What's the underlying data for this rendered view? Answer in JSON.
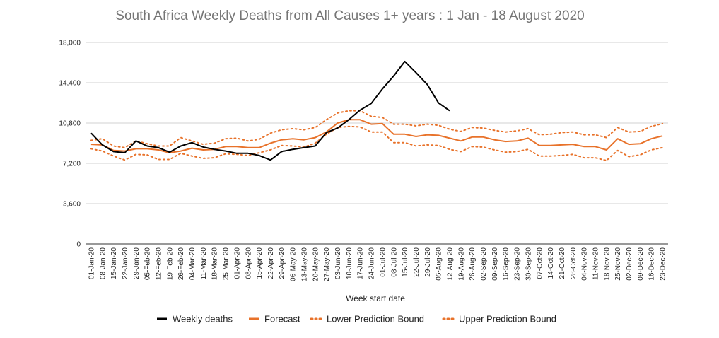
{
  "chart_data": {
    "type": "line",
    "title": "South Africa Weekly Deaths from All Causes 1+ years : 1 Jan  - 18 August 2020",
    "xlabel": "Week start date",
    "ylabel": "",
    "ylim": [
      0,
      18000
    ],
    "yticks": [
      "0",
      "3,600",
      "7,200",
      "10,800",
      "14,400",
      "18,000"
    ],
    "ytick_values": [
      0,
      3600,
      7200,
      10800,
      14400,
      18000
    ],
    "grid": "horizontal",
    "legend_position": "bottom",
    "categories": [
      "01-Jan-20",
      "08-Jan-20",
      "15-Jan-20",
      "22-Jan-20",
      "29-Jan-20",
      "05-Feb-20",
      "12-Feb-20",
      "19-Feb-20",
      "26-Feb-20",
      "04-Mar-20",
      "11-Mar-20",
      "18-Mar-20",
      "25-Mar-20",
      "01-Apr-20",
      "08-Apr-20",
      "15-Apr-20",
      "22-Apr-20",
      "29-Apr-20",
      "06-May-20",
      "13-May-20",
      "20-May-20",
      "27-May-20",
      "03-Jun-20",
      "10-Jun-20",
      "17-Jun-20",
      "24-Jun-20",
      "01-Jul-20",
      "08-Jul-20",
      "15-Jul-20",
      "22-Jul-20",
      "29-Jul-20",
      "05-Aug-20",
      "12-Aug-20",
      "19-Aug-20",
      "26-Aug-20",
      "02-Sep-20",
      "09-Sep-20",
      "16-Sep-20",
      "23-Sep-20",
      "30-Sep-20",
      "07-Oct-20",
      "14-Oct-20",
      "21-Oct-20",
      "28-Oct-20",
      "04-Nov-20",
      "11-Nov-20",
      "18-Nov-20",
      "25-Nov-20",
      "02-Dec-20",
      "09-Dec-20",
      "16-Dec-20",
      "23-Dec-20"
    ],
    "series": [
      {
        "name": "Weekly deaths",
        "color": "#000000",
        "style": "solid",
        "values": [
          9900,
          8850,
          8250,
          8150,
          9200,
          8750,
          8600,
          8200,
          8750,
          9050,
          8650,
          8450,
          8300,
          8100,
          8100,
          7900,
          7500,
          8250,
          8450,
          8600,
          8750,
          9950,
          10350,
          11100,
          11950,
          12550,
          13850,
          15000,
          16300,
          15300,
          14250,
          12600,
          11900,
          null,
          null,
          null,
          null,
          null,
          null,
          null,
          null,
          null,
          null,
          null,
          null,
          null,
          null,
          null,
          null,
          null,
          null,
          null
        ]
      },
      {
        "name": "Forecast",
        "color": "#e8722a",
        "style": "solid",
        "values": [
          8900,
          8850,
          8350,
          8300,
          8500,
          8500,
          8400,
          8150,
          8300,
          8550,
          8400,
          8450,
          8700,
          8700,
          8600,
          8600,
          9000,
          9300,
          9400,
          9300,
          9500,
          10000,
          10800,
          11100,
          11100,
          10700,
          10750,
          9800,
          9800,
          9600,
          9750,
          9700,
          9450,
          9200,
          9550,
          9550,
          9300,
          9150,
          9200,
          9450,
          8800,
          8800,
          8850,
          8900,
          8700,
          8700,
          8400,
          9400,
          8900,
          8950,
          9400,
          9650
        ]
      },
      {
        "name": "Lower Prediction Bound",
        "color": "#e8722a",
        "style": "dotted",
        "values": [
          8500,
          8300,
          7850,
          7500,
          8000,
          7950,
          7550,
          7550,
          8100,
          7850,
          7650,
          7700,
          8050,
          8000,
          7900,
          8150,
          8400,
          8800,
          8750,
          8650,
          9000,
          9800,
          10400,
          10500,
          10450,
          10000,
          10000,
          9050,
          9050,
          8750,
          8850,
          8800,
          8450,
          8250,
          8700,
          8650,
          8400,
          8200,
          8250,
          8450,
          7850,
          7850,
          7900,
          8000,
          7700,
          7700,
          7450,
          8350,
          7800,
          7950,
          8400,
          8600
        ]
      },
      {
        "name": "Upper Prediction Bound",
        "color": "#e8722a",
        "style": "dotted",
        "values": [
          9250,
          9400,
          8750,
          8600,
          9200,
          8950,
          8750,
          8750,
          9500,
          9200,
          8900,
          9000,
          9400,
          9450,
          9200,
          9350,
          9900,
          10200,
          10300,
          10200,
          10400,
          11100,
          11700,
          11900,
          11900,
          11400,
          11300,
          10700,
          10700,
          10550,
          10700,
          10600,
          10250,
          10050,
          10400,
          10350,
          10150,
          10000,
          10100,
          10300,
          9750,
          9800,
          9950,
          10000,
          9750,
          9750,
          9500,
          10400,
          10000,
          10050,
          10500,
          10750
        ]
      }
    ]
  }
}
